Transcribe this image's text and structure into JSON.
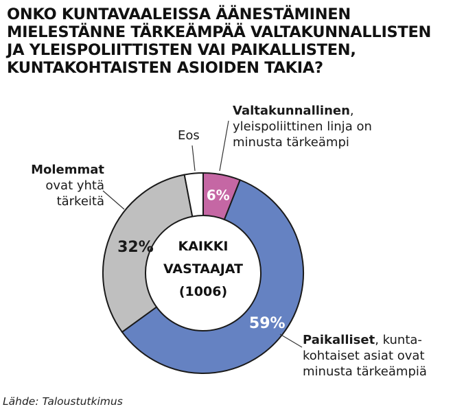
{
  "title_lines": [
    "ONKO KUNTAVAALEISSA ÄÄNESTÄMINEN",
    "MIELESTÄNNE  TÄRKEÄMPÄÄ VALTAKUNNALLISTEN",
    "JA YLEISPOLIITTISTEN VAI PAIKALLISTEN,",
    "KUNTAKOHTAISTEN ASIOIDEN TAKIA?"
  ],
  "center_label": [
    "KAIKKI",
    "VASTAAJAT",
    "(1006)"
  ],
  "source": "Lähde: Taloustutkimus",
  "labels": {
    "valtakunnallinen": {
      "bold": "Valtakunnallinen",
      "line1_rest": ",",
      "line2": "yleispoliittinen linja on",
      "line3": "minusta tärkeämpi"
    },
    "paikalliset": {
      "bold": "Paikalliset",
      "line1_rest": ", kunta-",
      "line2": "kohtaiset asiat ovat",
      "line3": "minusta tärkeämpiä"
    },
    "molemmat": {
      "bold": "Molemmat",
      "line2": "ovat yhtä",
      "line3": "tärkeitä"
    },
    "eos": {
      "text": "Eos"
    }
  },
  "chart_data": {
    "type": "pie",
    "donut": true,
    "title": "ONKO KUNTAVAALEISSA ÄÄNESTÄMINEN MIELESTÄNNE  TÄRKEÄMPÄÄ VALTAKUNNALLISTEN JA YLEISPOLIITTISTEN VAI PAIKALLISTEN, KUNTAKOHTAISTEN ASIOIDEN TAKIA?",
    "categories": [
      "Valtakunnallinen",
      "Paikalliset",
      "Molemmat",
      "Eos"
    ],
    "values": [
      6,
      59,
      32,
      3
    ],
    "value_labels": [
      "6%",
      "59%",
      "32%",
      ""
    ],
    "colors": [
      "#c567a4",
      "#6582c2",
      "#bfbfbf",
      "#ffffff"
    ],
    "start": "top",
    "direction": "clockwise",
    "legend": "none"
  }
}
